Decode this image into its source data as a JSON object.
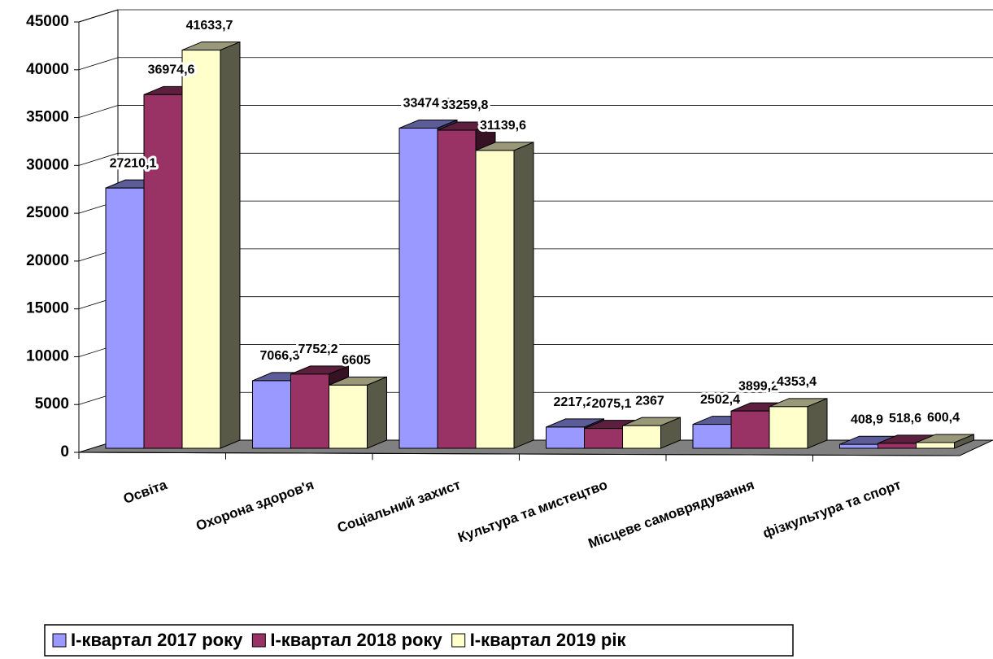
{
  "chart_data": {
    "type": "bar3d",
    "categories": [
      "Освіта",
      "Охорона здоров'я",
      "Соціальний захист",
      "Культура та мистецтво",
      "Місцеве самоврядування",
      "фізкультура та спорт"
    ],
    "series": [
      {
        "name": "I-квартал 2017 року",
        "color": "#9999ff",
        "values": [
          27210.1,
          7066.3,
          33474.7,
          2217.2,
          2502.4,
          408.9
        ],
        "value_labels": [
          "27210,1",
          "7066,3",
          "33474,7",
          "2217,2",
          "2502,4",
          "408,9"
        ]
      },
      {
        "name": "I-квартал 2018 року",
        "color": "#993366",
        "values": [
          36974.6,
          7752.2,
          33259.8,
          2075.1,
          3899.2,
          518.6
        ],
        "value_labels": [
          "36974,6",
          "7752,2",
          "33259,8",
          "2075,1",
          "3899,2",
          "518,6"
        ]
      },
      {
        "name": "I-квартал 2019 рік",
        "color": "#ffffcc",
        "values": [
          41633.7,
          6605,
          31139.6,
          2367,
          4353.4,
          600.4
        ],
        "value_labels": [
          "41633,7",
          "6605",
          "31139,6",
          "2367",
          "4353,4",
          "600,4"
        ]
      }
    ],
    "ylim": [
      0,
      45000
    ],
    "yticks": [
      0,
      5000,
      10000,
      15000,
      20000,
      25000,
      30000,
      35000,
      40000,
      45000
    ],
    "grid": true,
    "legend": "bottom"
  }
}
